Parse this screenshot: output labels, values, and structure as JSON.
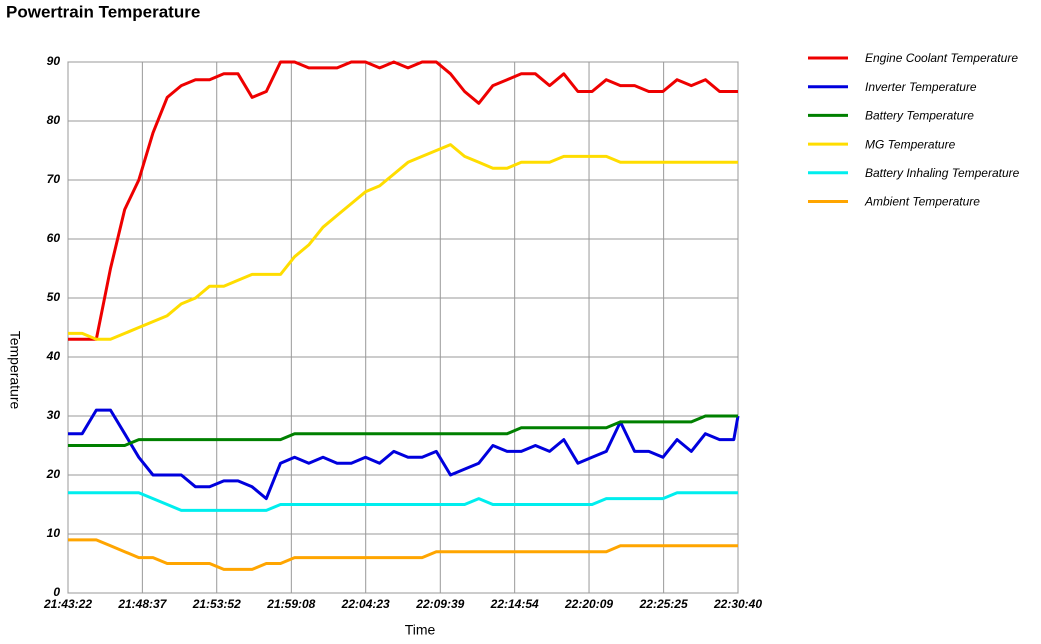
{
  "chart_data": {
    "type": "line",
    "title": "Powertrain Temperature",
    "x_label": "Time",
    "y_label": "Temperature",
    "x": [
      "21:43:22",
      "21:44:22",
      "21:45:22",
      "21:46:22",
      "21:47:22",
      "21:48:22",
      "21:49:22",
      "21:50:22",
      "21:51:22",
      "21:52:22",
      "21:53:22",
      "21:54:22",
      "21:55:22",
      "21:56:22",
      "21:57:22",
      "21:58:22",
      "21:59:22",
      "22:00:22",
      "22:01:22",
      "22:02:22",
      "22:03:22",
      "22:04:22",
      "22:05:22",
      "22:06:22",
      "22:07:22",
      "22:08:22",
      "22:09:22",
      "22:10:22",
      "22:11:22",
      "22:12:22",
      "22:13:22",
      "22:14:22",
      "22:15:22",
      "22:16:22",
      "22:17:22",
      "22:18:22",
      "22:19:22",
      "22:20:22",
      "22:21:22",
      "22:22:22",
      "22:23:22",
      "22:24:22",
      "22:25:22",
      "22:26:22",
      "22:27:22",
      "22:28:22",
      "22:29:22",
      "22:30:22",
      "22:30:40"
    ],
    "series": [
      {
        "name": "Engine Coolant Temperature",
        "color": "#ee0000",
        "values": [
          43,
          43,
          43,
          55,
          65,
          70,
          78,
          84,
          86,
          87,
          87,
          88,
          88,
          84,
          85,
          90,
          90,
          89,
          89,
          89,
          90,
          90,
          89,
          90,
          89,
          90,
          90,
          88,
          85,
          83,
          86,
          87,
          88,
          88,
          86,
          88,
          85,
          85,
          87,
          86,
          86,
          85,
          85,
          87,
          86,
          87,
          85,
          85,
          85
        ]
      },
      {
        "name": "Inverter Temperature",
        "color": "#0000dd",
        "values": [
          27,
          27,
          31,
          31,
          27,
          23,
          20,
          20,
          20,
          18,
          18,
          19,
          19,
          18,
          16,
          22,
          23,
          22,
          23,
          22,
          22,
          23,
          22,
          24,
          23,
          23,
          24,
          20,
          21,
          22,
          25,
          24,
          24,
          25,
          24,
          26,
          22,
          23,
          24,
          29,
          24,
          24,
          23,
          26,
          24,
          27,
          26,
          26,
          30
        ]
      },
      {
        "name": "Battery Temperature",
        "color": "#008000",
        "values": [
          25,
          25,
          25,
          25,
          25,
          26,
          26,
          26,
          26,
          26,
          26,
          26,
          26,
          26,
          26,
          26,
          27,
          27,
          27,
          27,
          27,
          27,
          27,
          27,
          27,
          27,
          27,
          27,
          27,
          27,
          27,
          27,
          28,
          28,
          28,
          28,
          28,
          28,
          28,
          29,
          29,
          29,
          29,
          29,
          29,
          30,
          30,
          30,
          30
        ]
      },
      {
        "name": "MG Temperature",
        "color": "#ffdd00",
        "values": [
          44,
          44,
          43,
          43,
          44,
          45,
          46,
          47,
          49,
          50,
          52,
          52,
          53,
          54,
          54,
          54,
          57,
          59,
          62,
          64,
          66,
          68,
          69,
          71,
          73,
          74,
          75,
          76,
          74,
          73,
          72,
          72,
          73,
          73,
          73,
          74,
          74,
          74,
          74,
          73,
          73,
          73,
          73,
          73,
          73,
          73,
          73,
          73,
          73
        ]
      },
      {
        "name": "Battery Inhaling Temperature",
        "color": "#00eeee",
        "values": [
          17,
          17,
          17,
          17,
          17,
          17,
          16,
          15,
          14,
          14,
          14,
          14,
          14,
          14,
          14,
          15,
          15,
          15,
          15,
          15,
          15,
          15,
          15,
          15,
          15,
          15,
          15,
          15,
          15,
          16,
          15,
          15,
          15,
          15,
          15,
          15,
          15,
          15,
          16,
          16,
          16,
          16,
          16,
          17,
          17,
          17,
          17,
          17,
          17
        ]
      },
      {
        "name": "Ambient Temperature",
        "color": "#ffa500",
        "values": [
          9,
          9,
          9,
          8,
          7,
          6,
          6,
          5,
          5,
          5,
          5,
          4,
          4,
          4,
          5,
          5,
          6,
          6,
          6,
          6,
          6,
          6,
          6,
          6,
          6,
          6,
          7,
          7,
          7,
          7,
          7,
          7,
          7,
          7,
          7,
          7,
          7,
          7,
          7,
          8,
          8,
          8,
          8,
          8,
          8,
          8,
          8,
          8,
          8
        ]
      }
    ],
    "xlim": [
      "21:43:22",
      "22:30:40"
    ],
    "xticks": [
      "21:43:22",
      "21:48:37",
      "21:53:52",
      "21:59:08",
      "22:04:23",
      "22:09:39",
      "22:14:54",
      "22:20:09",
      "22:25:25",
      "22:30:40"
    ],
    "ylim": [
      0,
      90
    ],
    "yticks": [
      0,
      10,
      20,
      30,
      40,
      50,
      60,
      70,
      80,
      90
    ],
    "grid": true,
    "legend": "right"
  }
}
